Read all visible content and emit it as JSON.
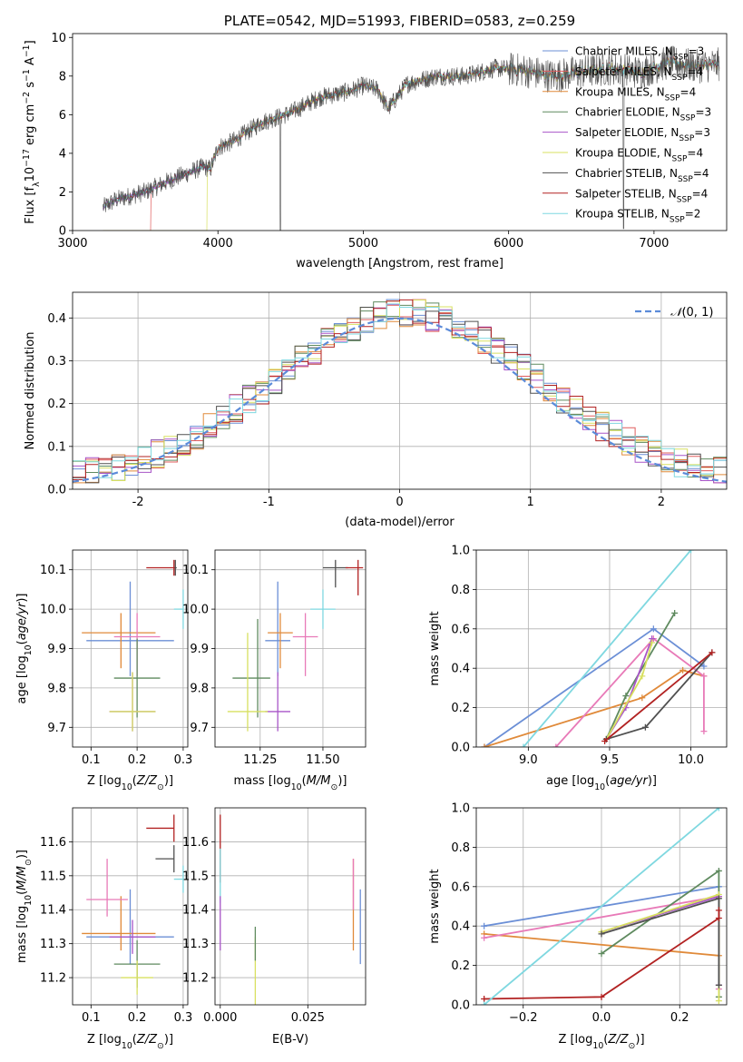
{
  "chart_data": [
    {
      "id": "spectrum",
      "type": "line",
      "title": "PLATE=0542, MJD=51993, FIBERID=0583, z=0.259",
      "xlabel": "wavelength [Angstrom, rest frame]",
      "ylabel": "Flux [f$_\\lambda$10$^{-17}$ erg cm$^{-2}$ s$^{-1}$ A$^{-1}$]",
      "ylabel_parts": [
        "Flux [f",
        "λ",
        "10",
        "−17",
        " erg cm",
        "−2",
        " s",
        "−1",
        " A",
        "−1",
        "]"
      ],
      "xlim": [
        3000,
        7500
      ],
      "ylim": [
        0,
        10.2
      ],
      "xticks": [
        3000,
        4000,
        5000,
        6000,
        7000
      ],
      "yticks": [
        0,
        2,
        4,
        6,
        8,
        10
      ],
      "grid": false,
      "legend_position": "top-right",
      "series": [
        {
          "name": "Chabrier MILES, N$_{SSP}$=3",
          "label": "Chabrier MILES, N",
          "sub": "SSP",
          "suffix": "=3",
          "color": "#6b8fd6"
        },
        {
          "name": "Salpeter MILES, N$_{SSP}$=4",
          "label": "Salpeter MILES, N",
          "sub": "SSP",
          "suffix": "=4",
          "color": "#e05c5c"
        },
        {
          "name": "Kroupa MILES, N$_{SSP}$=4",
          "label": "Kroupa MILES, N",
          "sub": "SSP",
          "suffix": "=4",
          "color": "#e08a3a"
        },
        {
          "name": "Chabrier ELODIE, N$_{SSP}$=3",
          "label": "Chabrier ELODIE, N",
          "sub": "SSP",
          "suffix": "=3",
          "color": "#5f8a5f"
        },
        {
          "name": "Salpeter ELODIE, N$_{SSP}$=3",
          "label": "Salpeter ELODIE, N",
          "sub": "SSP",
          "suffix": "=3",
          "color": "#a855c8"
        },
        {
          "name": "Kroupa ELODIE, N$_{SSP}$=4",
          "label": "Kroupa ELODIE, N",
          "sub": "SSP",
          "suffix": "=4",
          "color": "#d8e060"
        },
        {
          "name": "Chabrier STELIB, N$_{SSP}$=4",
          "label": "Chabrier STELIB, N",
          "sub": "SSP",
          "suffix": "=4",
          "color": "#505050"
        },
        {
          "name": "Salpeter STELIB, N$_{SSP}$=4",
          "label": "Salpeter STELIB, N",
          "sub": "SSP",
          "suffix": "=4",
          "color": "#b22222"
        },
        {
          "name": "Kroupa STELIB, N$_{SSP}$=2",
          "label": "Kroupa STELIB, N",
          "sub": "SSP",
          "suffix": "=2",
          "color": "#7fd8e0"
        }
      ],
      "data_flux": {
        "wave_start": 3210,
        "wave_end": 7450,
        "anchors_wave": [
          3210,
          3300,
          3500,
          3700,
          3900,
          3950,
          4000,
          4100,
          4300,
          4500,
          4700,
          4900,
          5000,
          5100,
          5170,
          5300,
          5500,
          5700,
          5900,
          6100,
          6300,
          6500,
          6700,
          6900,
          7100,
          7300,
          7450
        ],
        "anchors_flux": [
          1.2,
          1.6,
          2.0,
          2.7,
          3.3,
          3.2,
          4.3,
          4.6,
          5.6,
          6.1,
          6.9,
          7.2,
          7.5,
          7.3,
          6.3,
          7.6,
          8.0,
          8.0,
          8.4,
          8.3,
          8.0,
          8.2,
          8.4,
          8.2,
          8.7,
          8.5,
          8.6
        ]
      }
    },
    {
      "id": "residuals",
      "type": "line",
      "xlabel": "(data-model)/error",
      "ylabel": "Normed distribution",
      "xlim": [
        -2.5,
        2.5
      ],
      "ylim": [
        0,
        0.46
      ],
      "xticks": [
        -2,
        -1,
        0,
        1,
        2
      ],
      "yticks": [
        0.0,
        0.1,
        0.2,
        0.3,
        0.4
      ],
      "grid": true,
      "legend_position": "top-right",
      "legend": "N(0, 1)",
      "legend_parts": [
        "𝒩",
        "(0, 1)"
      ],
      "gaussian_color": "#5b8bd9",
      "bin_width": 0.1
    },
    {
      "id": "age_vs_Z",
      "type": "scatter",
      "xlabel": "Z [log$_{10}$(Z/Z$_\\odot$)]",
      "xlabel_parts": [
        "Z [log",
        "10",
        "(",
        "Z/Z",
        "⊙",
        ")]"
      ],
      "ylabel": "age  [log$_{10}$(age/yr)]",
      "ylabel_parts": [
        "age  [log",
        "10",
        "(",
        "age/yr",
        ")]"
      ],
      "xlim": [
        0.06,
        0.31
      ],
      "ylim": [
        9.65,
        10.15
      ],
      "xticks": [
        0.1,
        0.2,
        0.3
      ],
      "yticks": [
        9.7,
        9.8,
        9.9,
        10.0,
        10.1
      ],
      "grid": true,
      "points": [
        {
          "x": 0.185,
          "xerr": [
            0.095,
            0.095
          ],
          "y": 9.92,
          "yerr": [
            0.09,
            0.15
          ],
          "color": "#6b8fd6"
        },
        {
          "x": 0.165,
          "xerr": [
            0.085,
            0.075
          ],
          "y": 9.94,
          "yerr": [
            0.09,
            0.05
          ],
          "color": "#e08a3a"
        },
        {
          "x": 0.2,
          "xerr": [
            0.05,
            0.05
          ],
          "y": 9.93,
          "yerr": [
            0.1,
            0.06
          ],
          "color": "#e87ab8"
        },
        {
          "x": 0.2,
          "xerr": [
            0.05,
            0.05
          ],
          "y": 9.825,
          "yerr": [
            0.1,
            0.1
          ],
          "color": "#5f8a5f"
        },
        {
          "x": 0.19,
          "xerr": [
            0.05,
            0.05
          ],
          "y": 9.74,
          "yerr": [
            0.05,
            0.1
          ],
          "color": "#a855c8"
        },
        {
          "x": 0.19,
          "xerr": [
            0.05,
            0.05
          ],
          "y": 9.74,
          "yerr": [
            0.05,
            0.1
          ],
          "color": "#d8e060"
        },
        {
          "x": 0.283,
          "xerr": [
            0.003,
            0.003
          ],
          "y": 10.105,
          "yerr": [
            0.02,
            0.02
          ],
          "color": "#505050"
        },
        {
          "x": 0.28,
          "xerr": [
            0.06,
            0.0
          ],
          "y": 10.105,
          "yerr": [
            0.02,
            0.02
          ],
          "color": "#b22222"
        },
        {
          "x": 0.3,
          "xerr": [
            0.02,
            0.0
          ],
          "y": 10.0,
          "yerr": [
            0.05,
            0.05
          ],
          "color": "#7fd8e0"
        }
      ]
    },
    {
      "id": "age_vs_mass",
      "type": "scatter",
      "xlabel": "mass [log$_{10}$(M/M$_\\odot$)]",
      "xlabel_parts": [
        "mass [log",
        "10",
        "(",
        "M/M",
        "⊙",
        ")]"
      ],
      "ylabel": "",
      "xlim": [
        11.07,
        11.67
      ],
      "ylim": [
        9.65,
        10.15
      ],
      "xticks": [
        11.25,
        11.5
      ],
      "xtick_labels": [
        "11.25",
        "11.50"
      ],
      "yticks": [
        9.7,
        9.8,
        9.9,
        10.0,
        10.1
      ],
      "grid": true,
      "points": [
        {
          "x": 11.32,
          "xerr": [
            0.05,
            0.05
          ],
          "y": 9.92,
          "yerr": [
            0.09,
            0.15
          ],
          "color": "#6b8fd6"
        },
        {
          "x": 11.33,
          "xerr": [
            0.05,
            0.05
          ],
          "y": 9.94,
          "yerr": [
            0.09,
            0.05
          ],
          "color": "#e08a3a"
        },
        {
          "x": 11.43,
          "xerr": [
            0.05,
            0.05
          ],
          "y": 9.93,
          "yerr": [
            0.1,
            0.06
          ],
          "color": "#e87ab8"
        },
        {
          "x": 11.24,
          "xerr": [
            0.1,
            0.05
          ],
          "y": 9.825,
          "yerr": [
            0.1,
            0.15
          ],
          "color": "#5f8a5f"
        },
        {
          "x": 11.32,
          "xerr": [
            0.05,
            0.05
          ],
          "y": 9.74,
          "yerr": [
            0.05,
            0.1
          ],
          "color": "#a855c8"
        },
        {
          "x": 11.2,
          "xerr": [
            0.08,
            0.08
          ],
          "y": 9.74,
          "yerr": [
            0.05,
            0.2
          ],
          "color": "#d8e060"
        },
        {
          "x": 11.55,
          "xerr": [
            0.05,
            0.05
          ],
          "y": 10.105,
          "yerr": [
            0.05,
            0.02
          ],
          "color": "#505050"
        },
        {
          "x": 11.64,
          "xerr": [
            0.05,
            0.02
          ],
          "y": 10.105,
          "yerr": [
            0.07,
            0.02
          ],
          "color": "#b22222"
        },
        {
          "x": 11.5,
          "xerr": [
            0.05,
            0.05
          ],
          "y": 10.0,
          "yerr": [
            0.05,
            0.05
          ],
          "color": "#7fd8e0"
        }
      ]
    },
    {
      "id": "weight_vs_age",
      "type": "line",
      "xlabel": "age  [log$_{10}$(age/yr)]",
      "xlabel_parts": [
        "age  [log",
        "10",
        "(",
        "age/yr",
        ")]"
      ],
      "ylabel": "mass weight",
      "xlim": [
        8.68,
        10.22
      ],
      "ylim": [
        0,
        1
      ],
      "xticks": [
        9.0,
        9.5,
        10.0
      ],
      "yticks": [
        0.0,
        0.2,
        0.4,
        0.6,
        0.8,
        1.0
      ],
      "grid": true,
      "series": [
        {
          "color": "#6b8fd6",
          "x": [
            8.73,
            9.77,
            10.08
          ],
          "y": [
            0.0,
            0.6,
            0.41
          ]
        },
        {
          "color": "#e08a3a",
          "x": [
            8.73,
            9.7,
            9.95,
            10.08
          ],
          "y": [
            0.0,
            0.25,
            0.39,
            0.36
          ]
        },
        {
          "color": "#e87ab8",
          "x": [
            9.17,
            9.77,
            10.08,
            10.08
          ],
          "y": [
            0.0,
            0.55,
            0.36,
            0.08
          ]
        },
        {
          "color": "#5f8a5f",
          "x": [
            9.48,
            9.6,
            9.9
          ],
          "y": [
            0.04,
            0.26,
            0.68
          ]
        },
        {
          "color": "#a855c8",
          "x": [
            9.48,
            9.6,
            9.76
          ],
          "y": [
            0.04,
            0.2,
            0.55
          ]
        },
        {
          "color": "#d8e060",
          "x": [
            9.48,
            9.7,
            9.76
          ],
          "y": [
            0.04,
            0.36,
            0.53
          ]
        },
        {
          "color": "#505050",
          "x": [
            9.48,
            9.72,
            10.13
          ],
          "y": [
            0.04,
            0.1,
            0.48
          ]
        },
        {
          "color": "#b22222",
          "x": [
            9.47,
            10.13
          ],
          "y": [
            0.03,
            0.48
          ]
        },
        {
          "color": "#7fd8e0",
          "x": [
            8.97,
            10.0
          ],
          "y": [
            0.0,
            1.0
          ]
        }
      ]
    },
    {
      "id": "mass_vs_Z",
      "type": "scatter",
      "xlabel": "Z [log$_{10}$(Z/Z$_\\odot$)]",
      "xlabel_parts": [
        "Z [log",
        "10",
        "(",
        "Z/Z",
        "⊙",
        ")]"
      ],
      "ylabel": "mass [log$_{10}$(M/M$_\\odot$)]",
      "ylabel_parts": [
        "mass [log",
        "10",
        "(",
        "M/M",
        "⊙",
        ")]"
      ],
      "xlim": [
        0.06,
        0.31
      ],
      "ylim": [
        11.12,
        11.7
      ],
      "xticks": [
        0.1,
        0.2,
        0.3
      ],
      "yticks": [
        11.2,
        11.3,
        11.4,
        11.5,
        11.6
      ],
      "grid": true,
      "points": [
        {
          "x": 0.185,
          "xerr": [
            0.095,
            0.095
          ],
          "y": 11.32,
          "yerr": [
            0.08,
            0.14
          ],
          "color": "#6b8fd6"
        },
        {
          "x": 0.165,
          "xerr": [
            0.085,
            0.075
          ],
          "y": 11.33,
          "yerr": [
            0.05,
            0.11
          ],
          "color": "#e08a3a"
        },
        {
          "x": 0.135,
          "xerr": [
            0.045,
            0.045
          ],
          "y": 11.43,
          "yerr": [
            0.05,
            0.12
          ],
          "color": "#e87ab8"
        },
        {
          "x": 0.2,
          "xerr": [
            0.05,
            0.05
          ],
          "y": 11.24,
          "yerr": [
            0.07,
            0.07
          ],
          "color": "#5f8a5f"
        },
        {
          "x": 0.19,
          "xerr": [
            0.05,
            0.05
          ],
          "y": 11.32,
          "yerr": [
            0.05,
            0.05
          ],
          "color": "#a855c8"
        },
        {
          "x": 0.2,
          "xerr": [
            0.035,
            0.035
          ],
          "y": 11.2,
          "yerr": [
            0.05,
            0.05
          ],
          "color": "#d8e060"
        },
        {
          "x": 0.28,
          "xerr": [
            0.04,
            0.0
          ],
          "y": 11.55,
          "yerr": [
            0.04,
            0.04
          ],
          "color": "#505050"
        },
        {
          "x": 0.28,
          "xerr": [
            0.06,
            0.0
          ],
          "y": 11.64,
          "yerr": [
            0.04,
            0.04
          ],
          "color": "#b22222"
        },
        {
          "x": 0.3,
          "xerr": [
            0.02,
            0.0
          ],
          "y": 11.49,
          "yerr": [
            0.04,
            0.04
          ],
          "color": "#7fd8e0"
        }
      ]
    },
    {
      "id": "mass_vs_ebv",
      "type": "scatter",
      "xlabel": "E(B-V)",
      "ylabel": "",
      "xlim": [
        -0.0015,
        0.0415
      ],
      "ylim": [
        11.12,
        11.7
      ],
      "xticks": [
        0.0,
        0.025
      ],
      "xtick_labels": [
        "0.000",
        "0.025"
      ],
      "yticks": [
        11.2,
        11.3,
        11.4,
        11.5,
        11.6
      ],
      "grid": true,
      "points": [
        {
          "x": 0.0,
          "y": 11.58,
          "yerr": [
            0.1,
            0.1
          ],
          "color": "#b22222"
        },
        {
          "x": 0.0,
          "y": 11.5,
          "yerr": [
            0.08,
            0.08
          ],
          "color": "#7fd8e0"
        },
        {
          "x": 0.0,
          "y": 11.36,
          "yerr": [
            0.08,
            0.08
          ],
          "color": "#a855c8"
        },
        {
          "x": 0.01,
          "y": 11.22,
          "yerr": [
            0.1,
            0.1
          ],
          "color": "#d8e060"
        },
        {
          "x": 0.01,
          "y": 11.3,
          "yerr": [
            0.05,
            0.05
          ],
          "color": "#5f8a5f"
        },
        {
          "x": 0.038,
          "y": 11.36,
          "yerr": [
            0.08,
            0.19
          ],
          "color": "#e08a3a"
        },
        {
          "x": 0.038,
          "y": 11.45,
          "yerr": [
            0.05,
            0.1
          ],
          "color": "#e87ab8"
        },
        {
          "x": 0.04,
          "y": 11.35,
          "yerr": [
            0.11,
            0.11
          ],
          "color": "#6b8fd6"
        }
      ]
    },
    {
      "id": "weight_vs_Z",
      "type": "line",
      "xlabel": "Z [log$_{10}$(Z/Z$_\\odot$)]",
      "xlabel_parts": [
        "Z [log",
        "10",
        "(",
        "Z/Z",
        "⊙",
        ")]"
      ],
      "ylabel": "mass weight",
      "xlim": [
        -0.32,
        0.32
      ],
      "ylim": [
        0,
        1
      ],
      "xticks": [
        -0.2,
        0.0,
        0.2
      ],
      "xtick_labels": [
        "−0.2",
        "0.0",
        "0.2"
      ],
      "yticks": [
        0.0,
        0.2,
        0.4,
        0.6,
        0.8,
        1.0
      ],
      "grid": true,
      "series": [
        {
          "color": "#6b8fd6",
          "x": [
            -0.3,
            0.3
          ],
          "y": [
            0.4,
            0.6
          ]
        },
        {
          "color": "#e08a3a",
          "x": [
            -0.3,
            0.3
          ],
          "y": [
            0.36,
            0.25
          ]
        },
        {
          "color": "#e87ab8",
          "x": [
            -0.3,
            0.3,
            0.3
          ],
          "y": [
            0.34,
            0.55,
            0.08
          ]
        },
        {
          "color": "#5f8a5f",
          "x": [
            0.0,
            0.3,
            0.3
          ],
          "y": [
            0.26,
            0.68,
            0.04
          ]
        },
        {
          "color": "#a855c8",
          "x": [
            0.0,
            0.3,
            0.3
          ],
          "y": [
            0.37,
            0.55,
            0.1
          ]
        },
        {
          "color": "#d8e060",
          "x": [
            0.0,
            0.3,
            0.3
          ],
          "y": [
            0.37,
            0.56,
            0.02
          ]
        },
        {
          "color": "#505050",
          "x": [
            0.0,
            0.3,
            0.3
          ],
          "y": [
            0.36,
            0.54,
            0.1
          ]
        },
        {
          "color": "#b22222",
          "x": [
            -0.3,
            0.0,
            0.3,
            0.3
          ],
          "y": [
            0.03,
            0.04,
            0.44,
            0.48
          ]
        },
        {
          "color": "#7fd8e0",
          "x": [
            -0.3,
            0.3
          ],
          "y": [
            0.0,
            1.0
          ]
        }
      ]
    }
  ]
}
